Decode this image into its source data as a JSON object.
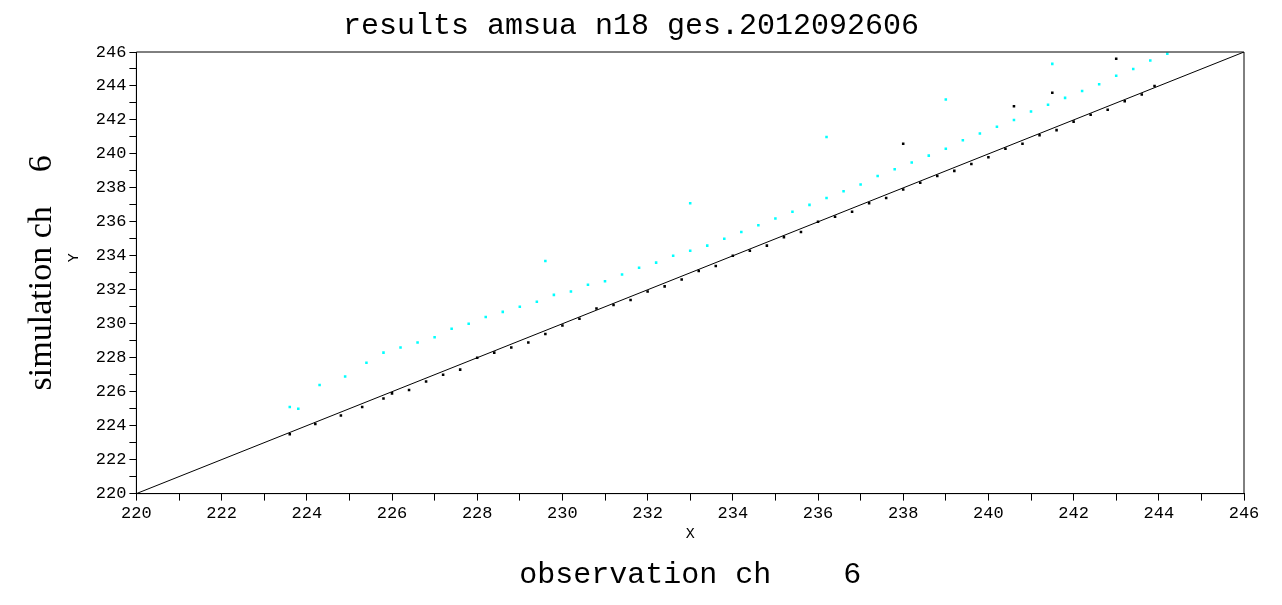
{
  "chart_data": {
    "type": "scatter",
    "title": "results amsua n18 ges.2012092606",
    "xlabel": "observation ch    6",
    "ylabel": "simulation ch    6",
    "annotations": [
      "X",
      "Y"
    ],
    "xlim": [
      220,
      246
    ],
    "ylim": [
      220,
      246
    ],
    "xticks": [
      220,
      {
        "value": 221,
        "label": null
      },
      222,
      {
        "value": 223,
        "label": null
      },
      224,
      {
        "value": 225,
        "label": null
      },
      226,
      {
        "value": 227,
        "label": null
      },
      228,
      {
        "value": 229,
        "label": null
      },
      230,
      {
        "value": 231,
        "label": null
      },
      232,
      {
        "value": 233,
        "label": null
      },
      234,
      {
        "value": 235,
        "label": null
      },
      236,
      {
        "value": 237,
        "label": null
      },
      238,
      {
        "value": 239,
        "label": null
      },
      240,
      {
        "value": 241,
        "label": null
      },
      242,
      {
        "value": 243,
        "label": null
      },
      244,
      {
        "value": 245,
        "label": null
      },
      246
    ],
    "yticks": [
      220,
      {
        "value": 221,
        "label": null
      },
      222,
      {
        "value": 223,
        "label": null
      },
      224,
      {
        "value": 225,
        "label": null
      },
      226,
      {
        "value": 227,
        "label": null
      },
      228,
      {
        "value": 229,
        "label": null
      },
      230,
      {
        "value": 231,
        "label": null
      },
      232,
      {
        "value": 233,
        "label": null
      },
      234,
      {
        "value": 235,
        "label": null
      },
      236,
      {
        "value": 237,
        "label": null
      },
      238,
      {
        "value": 239,
        "label": null
      },
      240,
      {
        "value": 241,
        "label": null
      },
      242,
      {
        "value": 243,
        "label": null
      },
      244,
      {
        "value": 245,
        "label": null
      },
      246
    ],
    "grid": false,
    "legend": false,
    "marker": "square",
    "series": [
      {
        "color": "#00ffff",
        "x": [
          223.6,
          223.8,
          224.3,
          224.9,
          225.4,
          225.8,
          226.2,
          226.6,
          227.0,
          227.4,
          227.8,
          228.2,
          228.6,
          229.0,
          229.4,
          229.8,
          230.2,
          230.6,
          231.0,
          231.4,
          231.8,
          232.2,
          232.6,
          233.0,
          233.4,
          233.8,
          234.2,
          234.6,
          235.0,
          235.4,
          235.8,
          236.2,
          236.6,
          237.0,
          237.4,
          237.8,
          238.2,
          238.6,
          239.0,
          239.4,
          239.8,
          240.2,
          240.6,
          241.0,
          241.4,
          241.8,
          242.2,
          242.6,
          243.0,
          243.4,
          243.8,
          244.2,
          236.2,
          233.0,
          239.0,
          241.5,
          229.6
        ],
        "values": [
          225.1,
          225.0,
          226.4,
          226.9,
          227.7,
          228.3,
          228.6,
          228.9,
          229.2,
          229.7,
          230.0,
          230.4,
          230.7,
          231.0,
          231.3,
          231.7,
          231.9,
          232.3,
          232.5,
          232.9,
          233.3,
          233.6,
          234.0,
          234.3,
          234.6,
          235.0,
          235.4,
          235.8,
          236.2,
          236.6,
          237.0,
          237.4,
          237.8,
          238.2,
          238.7,
          239.1,
          239.5,
          239.9,
          240.3,
          240.8,
          241.2,
          241.6,
          242.0,
          242.5,
          242.9,
          243.3,
          243.7,
          244.1,
          244.6,
          245.0,
          245.5,
          245.9,
          241.0,
          237.1,
          243.2,
          245.3,
          233.7
        ]
      },
      {
        "color": "#000000",
        "x": [
          223.6,
          224.2,
          224.8,
          225.3,
          225.8,
          226.0,
          226.4,
          226.8,
          227.2,
          227.6,
          228.0,
          228.4,
          228.8,
          229.2,
          229.6,
          230.0,
          230.4,
          230.8,
          231.2,
          231.6,
          232.0,
          232.4,
          232.8,
          233.2,
          233.6,
          234.0,
          234.4,
          234.8,
          235.2,
          235.6,
          236.0,
          236.4,
          236.8,
          237.2,
          237.6,
          238.0,
          238.4,
          238.8,
          239.2,
          239.6,
          240.0,
          240.4,
          240.8,
          241.2,
          241.6,
          242.0,
          242.4,
          242.8,
          243.2,
          243.6,
          243.9,
          238.0,
          240.6,
          241.5,
          243.0
        ],
        "values": [
          223.5,
          224.1,
          224.6,
          225.1,
          225.6,
          225.9,
          226.1,
          226.6,
          227.0,
          227.3,
          228.0,
          228.3,
          228.6,
          228.9,
          229.4,
          229.9,
          230.3,
          230.9,
          231.1,
          231.4,
          231.9,
          232.2,
          232.6,
          233.1,
          233.4,
          234.0,
          234.3,
          234.6,
          235.1,
          235.4,
          236.0,
          236.3,
          236.6,
          237.1,
          237.4,
          237.9,
          238.3,
          238.7,
          239.0,
          239.4,
          239.8,
          240.3,
          240.6,
          241.1,
          241.4,
          241.9,
          242.3,
          242.6,
          243.1,
          243.5,
          244.0,
          240.6,
          242.8,
          243.6,
          245.6
        ]
      },
      {
        "type": "line",
        "color": "#000000",
        "marker": "none",
        "x": [
          220,
          246
        ],
        "values": [
          220,
          246
        ]
      }
    ]
  }
}
